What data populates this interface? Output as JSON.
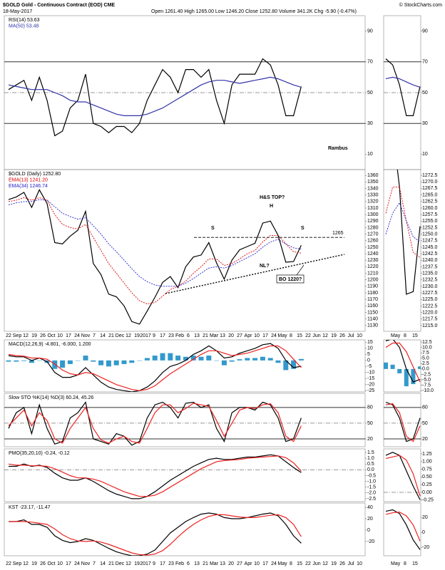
{
  "header": {
    "symbol": "$GOLD Gold - Continuous Contract (EOD) CME",
    "date": "18-May-2017",
    "quote": "Open 1261.40 High 1265.00 Low 1246.20 Close 1252.80 Volume 341.2K Chg -5.90 (-0.47%)",
    "credit": "© StockCharts.com"
  },
  "x_axis": {
    "labels": [
      "22",
      "Sep",
      "12",
      "19",
      "26",
      "Oct",
      "10",
      "17",
      "24",
      "Nov",
      "7",
      "14",
      "21",
      "Dec",
      "12",
      "19",
      "2017",
      "9",
      "17",
      "23",
      "Feb",
      "6",
      "13",
      "21",
      "Mar",
      "13",
      "20",
      "27",
      "Apr",
      "10",
      "17",
      "24",
      "May",
      "8",
      "15",
      "22",
      "Jun",
      "12",
      "19",
      "26",
      "Jul",
      "10"
    ]
  },
  "zoom_x_axis": {
    "labels": [
      "May",
      "8",
      "15"
    ]
  },
  "chart_data": [
    {
      "type": "line",
      "legend": [
        {
          "text": "RSI(14) 53.63",
          "color": "#000000"
        },
        {
          "text": "MA(50) 53.48",
          "color": "#3333aa"
        }
      ],
      "annotations": [
        "Rambus"
      ],
      "ylim": [
        0,
        100
      ],
      "yticks": [
        90,
        70,
        50,
        30,
        10
      ],
      "guides": [
        70,
        50,
        30
      ],
      "series": [
        {
          "name": "RSI(14)",
          "color": "#000000",
          "values": [
            52,
            55,
            58,
            45,
            60,
            45,
            22,
            25,
            40,
            45,
            62,
            30,
            28,
            24,
            28,
            28,
            24,
            30,
            45,
            55,
            65,
            60,
            50,
            65,
            65,
            60,
            65,
            45,
            30,
            55,
            62,
            62,
            62,
            72,
            68,
            55,
            35,
            35,
            54
          ]
        },
        {
          "name": "MA(50)",
          "color": "#3333aa",
          "values": [
            55,
            54,
            53,
            52,
            52,
            52,
            50,
            48,
            45,
            44,
            44,
            42,
            40,
            38,
            36,
            35,
            35,
            35,
            36,
            38,
            40,
            43,
            46,
            49,
            52,
            55,
            57,
            58,
            58,
            57,
            56,
            57,
            58,
            59,
            60,
            59,
            57,
            55,
            53.5
          ]
        }
      ],
      "zoom": {
        "ylim": [
          0,
          100
        ],
        "yticks": [
          90,
          70,
          50,
          30,
          10
        ]
      }
    },
    {
      "type": "line",
      "legend": [
        {
          "text": "$GOLD (Daily) 1252.80",
          "color": "#000000"
        },
        {
          "text": "EMA(13) 1241.20",
          "color": "#dd0000"
        },
        {
          "text": "EMA(34) 1246.74",
          "color": "#2222cc"
        }
      ],
      "annotations": [
        "H&S TOP?",
        "H",
        "S",
        "S",
        "NL?",
        "BO 1220?"
      ],
      "resistance": 1265,
      "ylim": [
        1121,
        1369
      ],
      "yticks": [
        1360,
        1350,
        1340,
        1330,
        1320,
        1310,
        1300,
        1290,
        1280,
        1270,
        1260,
        1250,
        1240,
        1230,
        1220,
        1210,
        1200,
        1190,
        1180,
        1170,
        1160,
        1150,
        1140,
        1130
      ],
      "guides": [],
      "series": [
        {
          "name": "$GOLD",
          "color": "#000000",
          "values": [
            1323,
            1327,
            1334,
            1311,
            1338,
            1317,
            1257,
            1255,
            1267,
            1276,
            1305,
            1225,
            1208,
            1178,
            1174,
            1160,
            1136,
            1132,
            1152,
            1173,
            1196,
            1205,
            1188,
            1220,
            1235,
            1238,
            1257,
            1226,
            1201,
            1230,
            1246,
            1251,
            1256,
            1287,
            1290,
            1268,
            1227,
            1228,
            1253
          ]
        },
        {
          "name": "EMA(13)",
          "color": "#dd0000",
          "dash": true,
          "values": [
            1320,
            1322,
            1326,
            1322,
            1326,
            1322,
            1300,
            1285,
            1280,
            1278,
            1285,
            1265,
            1245,
            1225,
            1210,
            1195,
            1180,
            1168,
            1163,
            1165,
            1175,
            1185,
            1190,
            1198,
            1210,
            1220,
            1232,
            1232,
            1222,
            1225,
            1232,
            1240,
            1245,
            1258,
            1268,
            1268,
            1255,
            1243,
            1241
          ]
        },
        {
          "name": "EMA(34)",
          "color": "#2222cc",
          "dash": true,
          "values": [
            1315,
            1318,
            1320,
            1320,
            1323,
            1322,
            1312,
            1302,
            1297,
            1293,
            1295,
            1283,
            1270,
            1255,
            1243,
            1230,
            1217,
            1205,
            1197,
            1192,
            1190,
            1190,
            1190,
            1195,
            1202,
            1210,
            1218,
            1220,
            1218,
            1222,
            1228,
            1234,
            1240,
            1250,
            1258,
            1262,
            1255,
            1249,
            1247
          ]
        }
      ],
      "zoom": {
        "ylim": [
          1212.8,
          1274.7
        ],
        "yticks": [
          1272.5,
          {
            "value": 1270,
            "label": "1270.0"
          },
          1267.5,
          {
            "value": 1265,
            "label": "1265.0"
          },
          1262.5,
          {
            "value": 1260,
            "label": "1260.0"
          },
          1257.5,
          {
            "value": 1255,
            "label": "1255.0"
          },
          1252.5,
          {
            "value": 1250,
            "label": "1250.0"
          },
          1247.5,
          {
            "value": 1245,
            "label": "1245.0"
          },
          1242.5,
          {
            "value": 1240,
            "label": "1240.0"
          },
          1237.5,
          {
            "value": 1235,
            "label": "1235.0"
          },
          1232.5,
          {
            "value": 1230,
            "label": "1230.0"
          },
          1227.5,
          {
            "value": 1225,
            "label": "1225.0"
          },
          1222.5,
          {
            "value": 1220,
            "label": "1220.0"
          },
          1217.5,
          {
            "value": 1215,
            "label": "1215.0"
          }
        ]
      }
    },
    {
      "type": "line",
      "legend": [
        {
          "text": "MACD(12,26,9) -4.801, -6.000, 1.200",
          "color": "#000000"
        }
      ],
      "ylim": [
        -26,
        17
      ],
      "yticks": [
        15,
        10,
        5,
        0,
        -5,
        -10,
        -15,
        -20,
        -25
      ],
      "guides": [],
      "series": [
        {
          "name": "Histogram",
          "color": "#3399cc",
          "style": "bar",
          "values": [
            -1,
            -1,
            -0.5,
            -2,
            0,
            -2,
            -7,
            -6,
            -3,
            0,
            4,
            -1,
            -4,
            -5,
            -4,
            -3,
            -2,
            0,
            2,
            4,
            6,
            6,
            4,
            3,
            4,
            3,
            4,
            0,
            -4,
            -1,
            1,
            2,
            2,
            3,
            2,
            -2,
            -8,
            -7,
            1.2
          ]
        },
        {
          "name": "MACD",
          "color": "#000000",
          "values": [
            4,
            3,
            3,
            0,
            2,
            -1,
            -10,
            -14,
            -14,
            -12,
            -6,
            -12,
            -18,
            -22,
            -24,
            -25,
            -26,
            -25,
            -22,
            -17,
            -10,
            -5,
            -3,
            0,
            5,
            8,
            12,
            8,
            2,
            3,
            6,
            8,
            10,
            13,
            14,
            10,
            0,
            -6,
            -4.8
          ]
        },
        {
          "name": "Signal",
          "color": "#ee2222",
          "values": [
            5,
            4,
            3.5,
            2,
            2,
            1,
            -3,
            -8,
            -11,
            -12,
            -10,
            -11,
            -14,
            -17,
            -20,
            -22,
            -24,
            -25,
            -24,
            -21,
            -16,
            -11,
            -7,
            -3,
            1,
            5,
            8,
            8,
            6,
            4,
            5,
            6,
            8,
            10,
            12,
            12,
            8,
            1,
            -6
          ]
        }
      ],
      "zoom": {
        "ylim": [
          -10.6,
          13.5
        ],
        "yticks": [
          12.5,
          {
            "value": 10,
            "label": "10.0"
          },
          7.5,
          {
            "value": 5,
            "label": "5.0"
          },
          2.5,
          {
            "value": 0,
            "label": "0.0"
          },
          -2.5,
          {
            "value": -5,
            "label": "-5.0"
          },
          -7.5,
          {
            "value": -10,
            "label": "-10.0"
          }
        ]
      }
    },
    {
      "type": "line",
      "legend": [
        {
          "text": "Slow STO %K(14) %D(3) 60.24, 45.26",
          "color": "#000000"
        }
      ],
      "ylim": [
        5,
        107
      ],
      "yticks": [
        80,
        50,
        20
      ],
      "guides": [
        80,
        50,
        20
      ],
      "series": [
        {
          "name": "%K",
          "color": "#000000",
          "values": [
            40,
            70,
            80,
            30,
            85,
            40,
            10,
            15,
            60,
            70,
            90,
            20,
            15,
            10,
            30,
            25,
            8,
            15,
            60,
            85,
            90,
            80,
            60,
            88,
            90,
            80,
            85,
            40,
            15,
            70,
            80,
            80,
            75,
            90,
            85,
            60,
            15,
            20,
            60
          ]
        },
        {
          "name": "%D",
          "color": "#ee2222",
          "values": [
            45,
            60,
            75,
            45,
            70,
            55,
            20,
            12,
            40,
            60,
            80,
            40,
            18,
            12,
            20,
            25,
            15,
            12,
            40,
            70,
            85,
            85,
            70,
            78,
            88,
            85,
            82,
            55,
            25,
            50,
            75,
            80,
            78,
            85,
            87,
            70,
            25,
            15,
            45
          ]
        }
      ],
      "zoom": {
        "ylim": [
          5,
          107
        ],
        "yticks": [
          80,
          50,
          20
        ]
      }
    },
    {
      "type": "line",
      "legend": [
        {
          "text": "PMO(35,20,10) -0.24, -0.12",
          "color": "#000000"
        }
      ],
      "ylim": [
        -2.75,
        1.81
      ],
      "yticks": [
        1.5,
        {
          "value": 1,
          "label": "1.0"
        },
        0.5,
        {
          "value": 0,
          "label": "0.0"
        },
        -0.5,
        {
          "value": -1,
          "label": "-1.0"
        },
        -1.5,
        {
          "value": -2,
          "label": "-2.0"
        },
        -2.5
      ],
      "guides": [
        0
      ],
      "series": [
        {
          "name": "PMO",
          "color": "#000000",
          "values": [
            0.3,
            0.3,
            0.5,
            0.3,
            0.4,
            0.2,
            -0.3,
            -0.7,
            -0.9,
            -0.9,
            -0.7,
            -1.0,
            -1.4,
            -1.8,
            -2.1,
            -2.3,
            -2.5,
            -2.5,
            -2.3,
            -1.9,
            -1.4,
            -0.9,
            -0.5,
            -0.1,
            0.3,
            0.6,
            0.9,
            1.0,
            0.9,
            0.9,
            1.0,
            1.1,
            1.1,
            1.2,
            1.3,
            1.2,
            0.7,
            0.2,
            -0.24
          ]
        },
        {
          "name": "Signal",
          "color": "#ee2222",
          "values": [
            0.5,
            0.4,
            0.4,
            0.35,
            0.35,
            0.3,
            0.1,
            -0.2,
            -0.5,
            -0.7,
            -0.7,
            -0.8,
            -1.0,
            -1.3,
            -1.6,
            -1.9,
            -2.1,
            -2.3,
            -2.3,
            -2.2,
            -1.9,
            -1.5,
            -1.1,
            -0.7,
            -0.3,
            0.1,
            0.4,
            0.7,
            0.8,
            0.85,
            0.9,
            1.0,
            1.05,
            1.1,
            1.15,
            1.2,
            1.05,
            0.6,
            -0.12
          ]
        }
      ],
      "zoom": {
        "ylim": [
          -0.3,
          1.41
        ],
        "yticks": [
          1.25,
          {
            "value": 1,
            "label": "1.00"
          },
          0.75,
          {
            "value": 0.5,
            "label": "0.50"
          },
          0.25,
          {
            "value": 0,
            "label": "0.00"
          },
          -0.25
        ]
      }
    },
    {
      "type": "line",
      "legend": [
        {
          "text": "KST -23.17, -11.47",
          "color": "#000000"
        }
      ],
      "ylim": [
        -45,
        47.5
      ],
      "yticks": [
        40,
        20,
        0,
        -20
      ],
      "guides": [],
      "series": [
        {
          "name": "KST",
          "color": "#000000",
          "values": [
            15,
            15,
            18,
            10,
            10,
            5,
            -10,
            -18,
            -22,
            -20,
            -15,
            -18,
            -25,
            -32,
            -38,
            -42,
            -45,
            -45,
            -42,
            -35,
            -20,
            -5,
            5,
            15,
            22,
            28,
            30,
            28,
            22,
            20,
            20,
            22,
            25,
            28,
            30,
            25,
            10,
            -10,
            -23
          ]
        },
        {
          "name": "Signal",
          "color": "#ee2222",
          "values": [
            15,
            15,
            15,
            14,
            12,
            10,
            2,
            -8,
            -15,
            -19,
            -20,
            -19,
            -21,
            -25,
            -30,
            -35,
            -40,
            -43,
            -44,
            -42,
            -36,
            -25,
            -12,
            0,
            10,
            18,
            24,
            27,
            27,
            25,
            23,
            22,
            22,
            24,
            26,
            27,
            22,
            10,
            -11.5
          ]
        }
      ],
      "zoom": {
        "ylim": [
          -31,
          39
        ],
        "yticks": [
          20,
          0,
          -20
        ]
      }
    }
  ]
}
